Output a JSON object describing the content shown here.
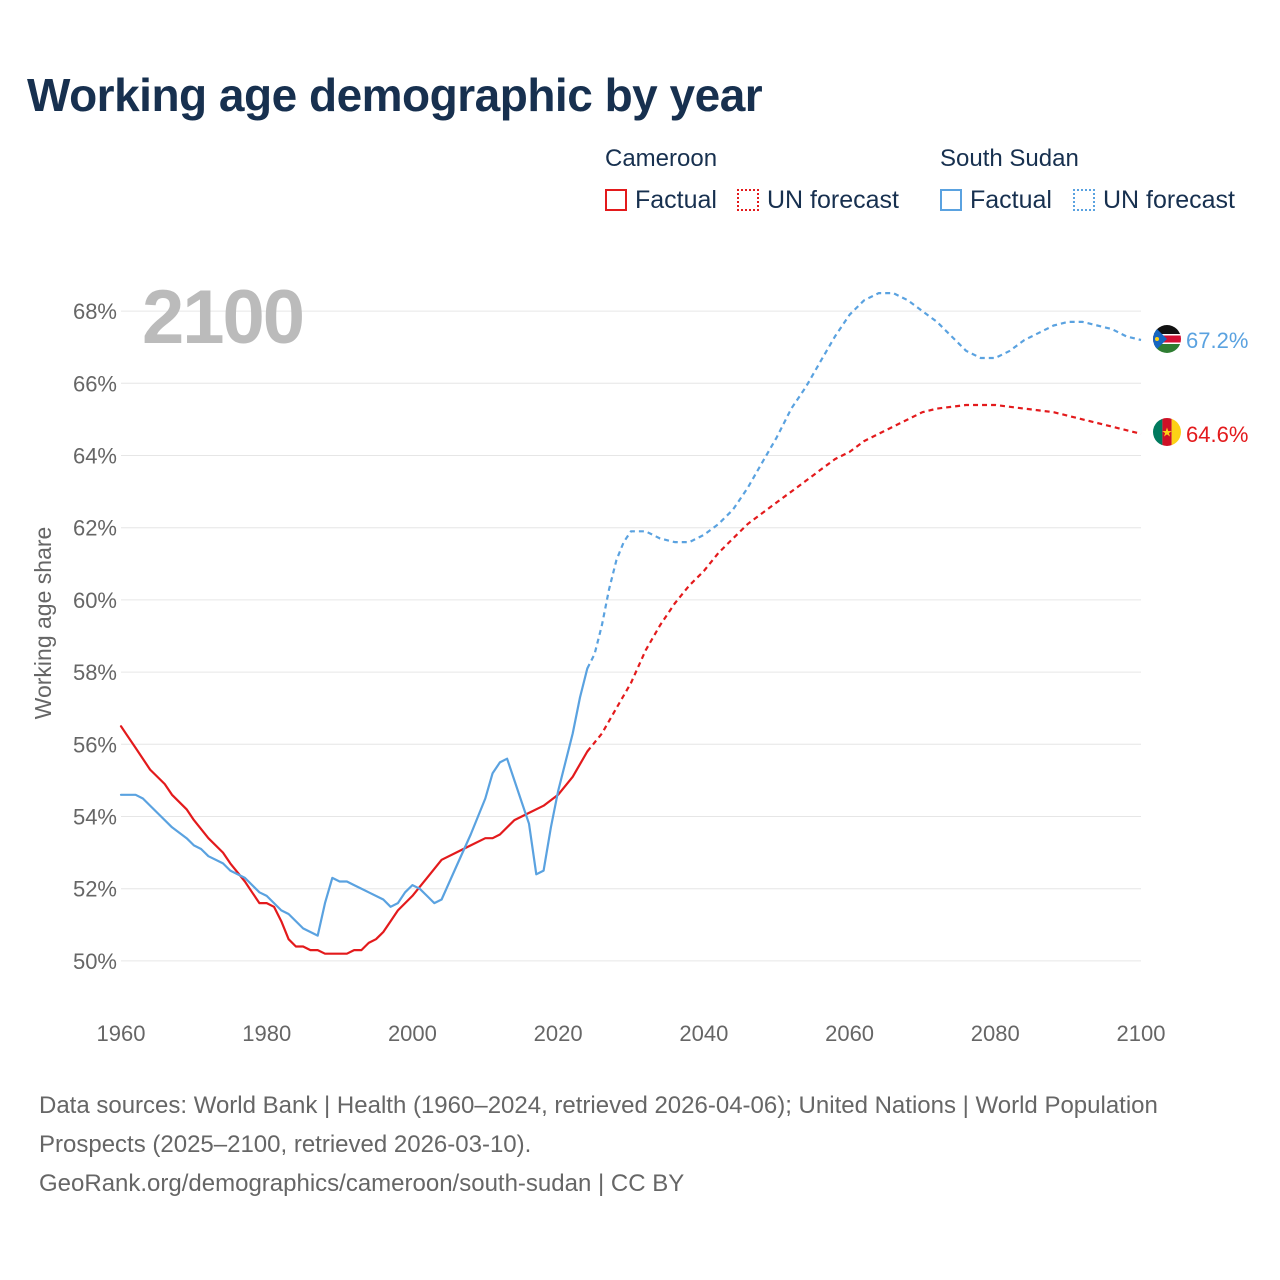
{
  "title": "Working age demographic by year",
  "legend": {
    "groups": [
      {
        "name": "Cameroon",
        "factual_label": "Factual",
        "forecast_label": "UN forecast",
        "color": "#e31a1c"
      },
      {
        "name": "South Sudan",
        "factual_label": "Factual",
        "forecast_label": "UN forecast",
        "color": "#5aa2e0"
      }
    ]
  },
  "year_label": "2100",
  "footer": {
    "sources": "Data sources: World Bank | Health (1960–2024, retrieved 2026-04-06); United Nations | World Population Prospects (2025–2100, retrieved 2026-03-10).",
    "attribution": "GeoRank.org/demographics/cameroon/south-sudan | CC BY"
  },
  "chart_data": {
    "type": "line",
    "title": "Working age demographic by year",
    "xlabel": "",
    "ylabel": "Working age share",
    "xlim": [
      1960,
      2100
    ],
    "ylim": [
      49,
      69
    ],
    "x_ticks": [
      1960,
      1980,
      2000,
      2020,
      2040,
      2060,
      2080,
      2100
    ],
    "y_ticks": [
      50,
      52,
      54,
      56,
      58,
      60,
      62,
      64,
      66,
      68
    ],
    "y_tick_suffix": "%",
    "grid": true,
    "series": [
      {
        "name": "Cameroon",
        "segment": "Factual",
        "color": "#e31a1c",
        "dash": "",
        "x": [
          1960,
          1962,
          1964,
          1966,
          1967,
          1969,
          1970,
          1972,
          1974,
          1975,
          1977,
          1978,
          1979,
          1980,
          1981,
          1982,
          1983,
          1984,
          1985,
          1986,
          1987,
          1988,
          1989,
          1990,
          1991,
          1992,
          1993,
          1994,
          1995,
          1996,
          1997,
          1998,
          2000,
          2002,
          2004,
          2006,
          2008,
          2010,
          2011,
          2012,
          2014,
          2016,
          2018,
          2020,
          2022,
          2024
        ],
        "y": [
          56.5,
          55.9,
          55.3,
          54.9,
          54.6,
          54.2,
          53.9,
          53.4,
          53.0,
          52.7,
          52.2,
          51.9,
          51.6,
          51.6,
          51.5,
          51.1,
          50.6,
          50.4,
          50.4,
          50.3,
          50.3,
          50.2,
          50.2,
          50.2,
          50.2,
          50.3,
          50.3,
          50.5,
          50.6,
          50.8,
          51.1,
          51.4,
          51.8,
          52.3,
          52.8,
          53.0,
          53.2,
          53.4,
          53.4,
          53.5,
          53.9,
          54.1,
          54.3,
          54.6,
          55.1,
          55.8
        ]
      },
      {
        "name": "Cameroon",
        "segment": "UN forecast",
        "color": "#e31a1c",
        "dash": "5,4",
        "x": [
          2024,
          2026,
          2028,
          2030,
          2032,
          2034,
          2036,
          2038,
          2040,
          2042,
          2044,
          2046,
          2048,
          2050,
          2052,
          2054,
          2056,
          2058,
          2060,
          2062,
          2064,
          2066,
          2068,
          2070,
          2072,
          2074,
          2076,
          2078,
          2080,
          2082,
          2084,
          2086,
          2088,
          2090,
          2092,
          2094,
          2096,
          2098,
          2100
        ],
        "y": [
          55.8,
          56.3,
          57.0,
          57.7,
          58.6,
          59.3,
          59.9,
          60.4,
          60.8,
          61.3,
          61.7,
          62.1,
          62.4,
          62.7,
          63.0,
          63.3,
          63.6,
          63.9,
          64.1,
          64.4,
          64.6,
          64.8,
          65.0,
          65.2,
          65.3,
          65.35,
          65.4,
          65.4,
          65.4,
          65.35,
          65.3,
          65.25,
          65.2,
          65.1,
          65.0,
          64.9,
          64.8,
          64.7,
          64.6
        ]
      },
      {
        "name": "South Sudan",
        "segment": "Factual",
        "color": "#5aa2e0",
        "dash": "",
        "x": [
          1960,
          1962,
          1963,
          1965,
          1967,
          1969,
          1970,
          1971,
          1972,
          1974,
          1975,
          1977,
          1979,
          1980,
          1981,
          1982,
          1983,
          1985,
          1987,
          1988,
          1989,
          1990,
          1991,
          1992,
          1994,
          1996,
          1997,
          1998,
          1999,
          2000,
          2001,
          2002,
          2003,
          2004,
          2006,
          2008,
          2009,
          2010,
          2011,
          2012,
          2013,
          2014,
          2015,
          2016,
          2017,
          2018,
          2019,
          2020,
          2022,
          2023,
          2024
        ],
        "y": [
          54.6,
          54.6,
          54.5,
          54.1,
          53.7,
          53.4,
          53.2,
          53.1,
          52.9,
          52.7,
          52.5,
          52.3,
          51.9,
          51.8,
          51.6,
          51.4,
          51.3,
          50.9,
          50.7,
          51.6,
          52.3,
          52.2,
          52.2,
          52.1,
          51.9,
          51.7,
          51.5,
          51.6,
          51.9,
          52.1,
          52.0,
          51.8,
          51.6,
          51.7,
          52.6,
          53.5,
          54.0,
          54.5,
          55.2,
          55.5,
          55.6,
          55.0,
          54.4,
          53.8,
          52.4,
          52.5,
          53.7,
          54.7,
          56.3,
          57.3,
          58.1
        ]
      },
      {
        "name": "South Sudan",
        "segment": "UN forecast",
        "color": "#5aa2e0",
        "dash": "5,4",
        "x": [
          2024,
          2025,
          2026,
          2027,
          2028,
          2029,
          2030,
          2032,
          2034,
          2036,
          2038,
          2040,
          2042,
          2044,
          2046,
          2048,
          2050,
          2052,
          2054,
          2056,
          2058,
          2060,
          2062,
          2064,
          2066,
          2068,
          2070,
          2072,
          2074,
          2076,
          2078,
          2080,
          2082,
          2084,
          2086,
          2088,
          2090,
          2092,
          2094,
          2096,
          2098,
          2100
        ],
        "y": [
          58.1,
          58.5,
          59.3,
          60.3,
          61.1,
          61.6,
          61.9,
          61.9,
          61.7,
          61.6,
          61.6,
          61.8,
          62.1,
          62.5,
          63.1,
          63.8,
          64.5,
          65.3,
          65.9,
          66.6,
          67.3,
          67.9,
          68.3,
          68.5,
          68.5,
          68.3,
          68.0,
          67.7,
          67.3,
          66.9,
          66.7,
          66.7,
          66.9,
          67.2,
          67.4,
          67.6,
          67.7,
          67.7,
          67.6,
          67.5,
          67.3,
          67.2
        ]
      }
    ],
    "end_labels": [
      {
        "name": "South Sudan",
        "value": 67.2,
        "text": "67.2%",
        "color": "#5aa2e0"
      },
      {
        "name": "Cameroon",
        "value": 64.6,
        "text": "64.6%",
        "color": "#e31a1c"
      }
    ]
  }
}
